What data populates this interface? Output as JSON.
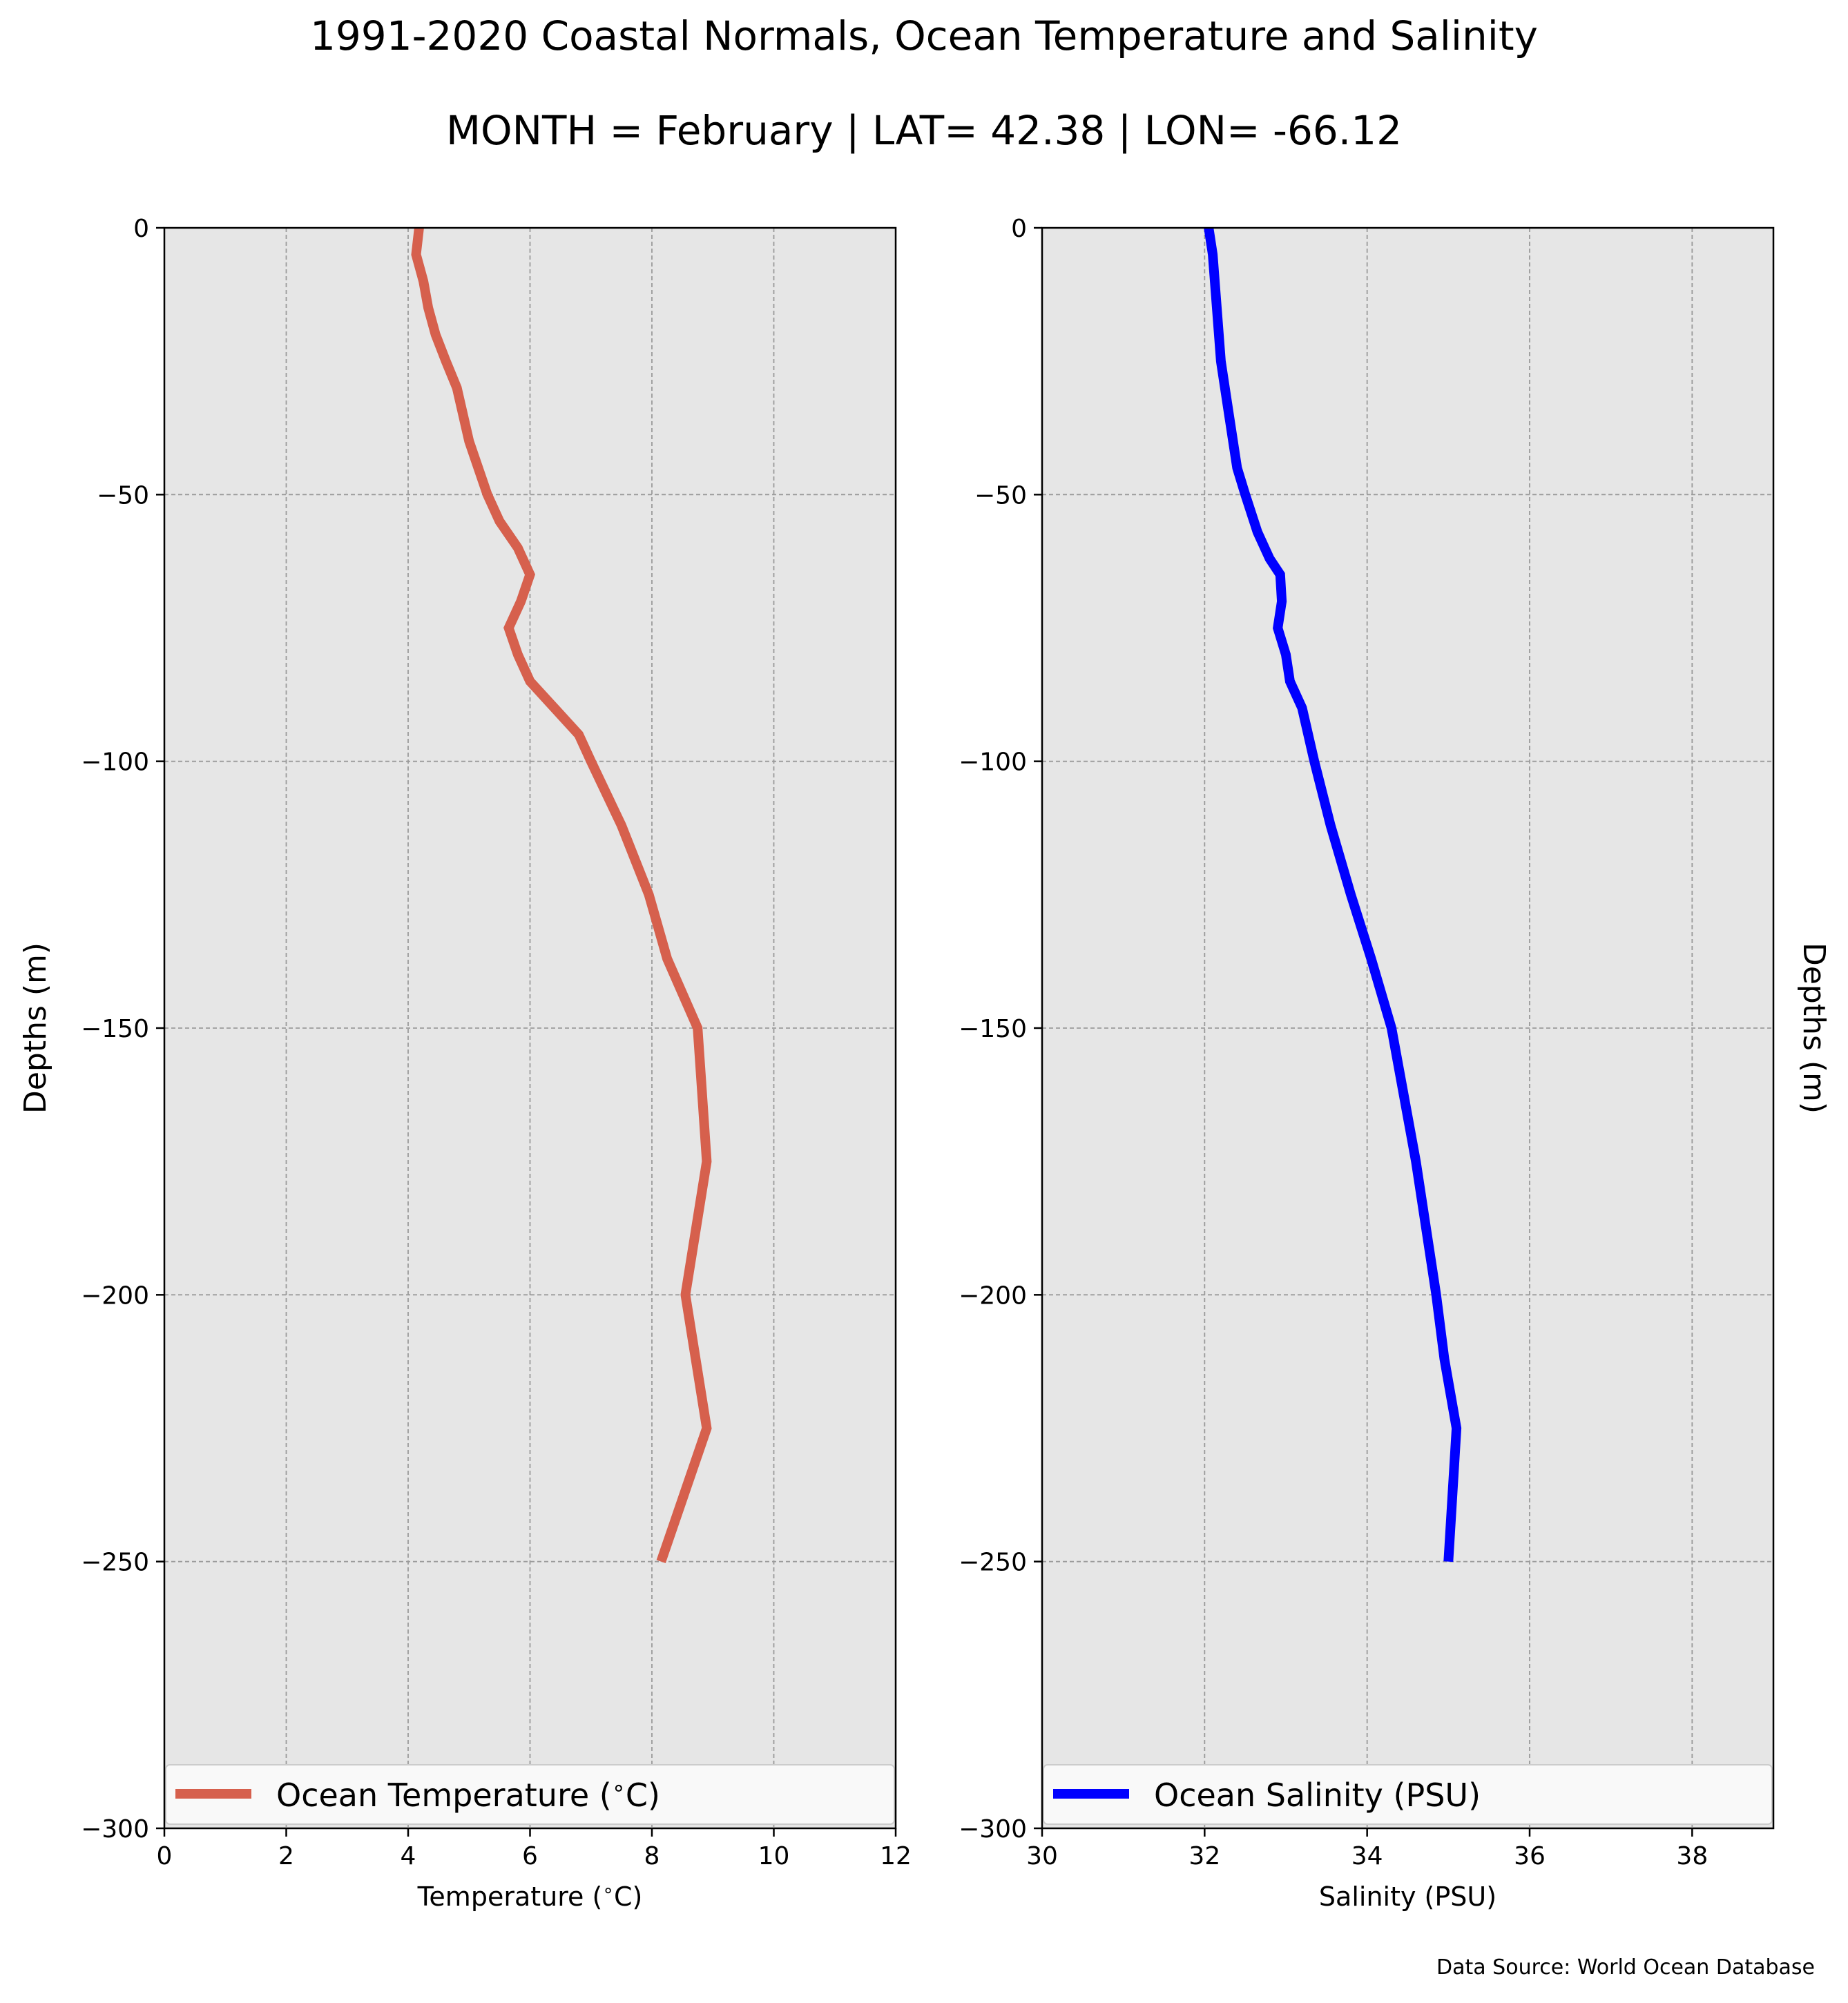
{
  "figure": {
    "title_line1": "1991-2020 Coastal Normals, Ocean Temperature and Salinity",
    "title_line2": "MONTH = February | LAT= 42.38 | LON= -66.12",
    "source_note": "Data Source: World Ocean Database"
  },
  "colors": {
    "temperature_line": "#d6604d",
    "salinity_line": "#0000ff",
    "plot_background": "#e6e6e6",
    "grid": "#9a9a9a"
  },
  "chart_data": [
    {
      "type": "line",
      "xlabel": "Temperature ($^\\circ$C)",
      "ylabel": "Depths (m)",
      "xlabel_text": "Temperature (",
      "xlabel_unit": "C)",
      "ylabel_side": "left",
      "xlim": [
        0,
        12
      ],
      "ylim": [
        -300,
        0
      ],
      "xticks": [
        0,
        2,
        4,
        6,
        8,
        10,
        12
      ],
      "yticks": [
        0,
        -50,
        -100,
        -150,
        -200,
        -250,
        -300
      ],
      "ytick_labels": [
        "0",
        "−50",
        "−100",
        "−150",
        "−200",
        "−250",
        "−300"
      ],
      "grid": true,
      "legend_position": "bottom",
      "legend_label_text": "Ocean Temperature (",
      "legend_label_unit": "C)",
      "series": [
        {
          "name": "Ocean Temperature (°C)",
          "x": [
            4.18,
            4.13,
            4.25,
            4.33,
            4.45,
            4.62,
            4.8,
            5.0,
            5.3,
            5.5,
            5.8,
            6.0,
            5.85,
            5.65,
            5.8,
            6.0,
            6.4,
            6.8,
            7.0,
            7.5,
            7.95,
            8.25,
            8.75,
            8.9,
            8.55,
            8.9,
            8.15
          ],
          "y": [
            0,
            -5,
            -10,
            -15,
            -20,
            -25,
            -30,
            -40,
            -50,
            -55,
            -60,
            -65,
            -70,
            -75,
            -80,
            -85,
            -90,
            -95,
            -100,
            -112,
            -125,
            -137,
            -150,
            -175,
            -200,
            -225,
            -250
          ]
        }
      ]
    },
    {
      "type": "line",
      "xlabel": "Salinity (PSU)",
      "ylabel": "Depths (m)",
      "ylabel_side": "right",
      "xlim": [
        30,
        39
      ],
      "ylim": [
        -300,
        0
      ],
      "xticks": [
        30,
        32,
        34,
        36,
        38
      ],
      "yticks": [
        0,
        -50,
        -100,
        -150,
        -200,
        -250,
        -300
      ],
      "ytick_labels": [
        "0",
        "−50",
        "−100",
        "−150",
        "−200",
        "−250",
        "−300"
      ],
      "grid": true,
      "legend_position": "bottom",
      "series": [
        {
          "name": "Ocean Salinity (PSU)",
          "x": [
            32.05,
            32.1,
            32.15,
            32.2,
            32.3,
            32.4,
            32.5,
            32.65,
            32.8,
            32.93,
            32.95,
            32.9,
            33.0,
            33.05,
            33.2,
            33.35,
            33.55,
            33.8,
            34.05,
            34.3,
            34.6,
            34.85,
            34.95,
            35.1,
            35.0
          ],
          "y": [
            0,
            -5,
            -15,
            -25,
            -35,
            -45,
            -50,
            -57,
            -62,
            -65,
            -70,
            -75,
            -80,
            -85,
            -90,
            -100,
            -112,
            -125,
            -137,
            -150,
            -175,
            -200,
            -212,
            -225,
            -250
          ]
        }
      ]
    }
  ]
}
